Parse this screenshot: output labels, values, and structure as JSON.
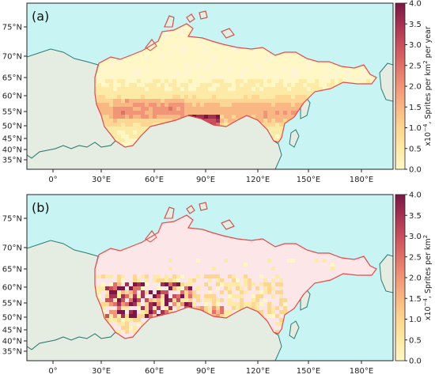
{
  "panels": [
    {
      "label": "(a)",
      "colorbar": {
        "label_prefix": "x10",
        "label_exp": "−4",
        "label_mid": ", Sprites per km",
        "label_exp2": "2",
        "label_suffix": " per year",
        "ticks": [
          "0.0",
          "0.5",
          "1.0",
          "1.5",
          "2.0",
          "2.5",
          "3.0",
          "3.5",
          "4.0"
        ]
      }
    },
    {
      "label": "(b)",
      "colorbar": {
        "label_prefix": "x10",
        "label_exp": "−4",
        "label_mid": ", Sprites per km",
        "label_exp2": "2",
        "label_suffix": "",
        "ticks": [
          "0.0",
          "0.5",
          "1.0",
          "1.5",
          "2.0",
          "2.5",
          "3.0",
          "3.5",
          "4.0"
        ]
      }
    }
  ],
  "axes": {
    "lon_ticks": [
      "0°",
      "30°E",
      "60°E",
      "90°E",
      "120°E",
      "150°E",
      "180°E"
    ],
    "lat_ticks": [
      "75°N",
      "70°N",
      "65°N",
      "60°N",
      "55°N",
      "50°N",
      "45°N",
      "40°N",
      "35°N"
    ]
  },
  "colors": {
    "ocean": "#c8f4f4",
    "land": "#e5ede2",
    "russia_fill_b": "#fde6e7",
    "border": "#e34a4a",
    "coast": "#2f7a74",
    "cmap": [
      "#fff7c6",
      "#fdeaa6",
      "#fcd692",
      "#f9b783",
      "#f09577",
      "#df7168",
      "#c84f5c",
      "#a33152",
      "#7a1746"
    ]
  }
}
